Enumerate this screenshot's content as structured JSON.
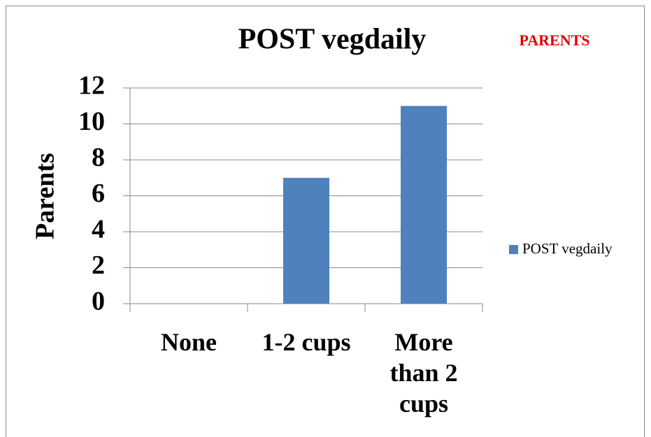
{
  "chart_data": {
    "type": "bar",
    "title": "POST vegdaily",
    "annotation": "PARENTS",
    "y_label": "Parents",
    "categories": [
      "None",
      "1-2 cups",
      "More than 2 cups"
    ],
    "series": [
      {
        "name": "POST vegdaily",
        "color": "#4f81bd",
        "values": [
          0,
          7,
          11
        ]
      }
    ],
    "ylim": [
      0,
      12
    ],
    "yticks": [
      0,
      2,
      4,
      6,
      8,
      10,
      12
    ],
    "grid": true,
    "legend": "right"
  }
}
